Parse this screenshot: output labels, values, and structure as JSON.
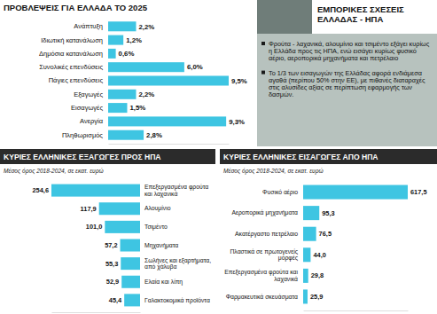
{
  "chart_data": [
    {
      "type": "bar",
      "orientation": "horizontal",
      "title": "ΠΡΟΒΛΕΨΕΙΣ ΓΙΑ ΕΛΛΑΔΑ ΤΟ 2025",
      "categories": [
        "Ανάπτυξη",
        "Ιδιωτική κατανάλωση",
        "Δημόσια κατανάλωση",
        "Συνολικές επενδύσεις",
        "Πάγιες επενδύσεις",
        "Εξαγωγές",
        "Εισαγωγές",
        "Ανεργία",
        "Πληθωρισμός"
      ],
      "values": [
        2.2,
        1.2,
        0.6,
        6.0,
        9.5,
        2.2,
        1.5,
        9.3,
        2.8
      ],
      "value_labels": [
        "2,2%",
        "1,2%",
        "0,6%",
        "6,0%",
        "9,5%",
        "2,2%",
        "1,5%",
        "9,3%",
        "2,8%"
      ],
      "color": "#3ec5e2",
      "xlim": [
        0,
        9.5
      ],
      "data_labels": true,
      "tick_labels": "y"
    },
    {
      "type": "bar",
      "orientation": "horizontal",
      "title": "ΚΥΡΙΕΣ ΕΛΛΗΝΙΚΕΣ ΕΞΑΓΩΓΕΣ ΠΡΟΣ ΗΠΑ",
      "subtitle": "Μέσος όρος 2018-2024, σε εκατ. ευρώ",
      "categories": [
        "Επεξεργασμένα φρούτα και λαχανικά",
        "Αλουμίνιο",
        "Τσιμέντο",
        "Μηχανήματα",
        "Σωλήνες και εξαρτήματα, από χάλυβα",
        "Ελαία και λίπη",
        "Γαλακτοκομικά προϊόντα"
      ],
      "values": [
        254.6,
        117.9,
        101.0,
        57.2,
        55.3,
        52.9,
        45.4
      ],
      "value_labels": [
        "254,6",
        "117,9",
        "101,0",
        "57,2",
        "55,3",
        "52,9",
        "45,4"
      ],
      "color": "#3ec5e2",
      "xlim": [
        0,
        254.6
      ],
      "data_labels": true,
      "tick_labels": "y"
    },
    {
      "type": "bar",
      "orientation": "horizontal",
      "title": "ΚΥΡΙΕΣ ΕΛΛΗΝΙΚΕΣ ΕΙΣΑΓΩΓΕΣ ΑΠΟ ΗΠΑ",
      "subtitle": "Μέσος όρος 2018-2024, σε εκατ. ευρώ",
      "categories": [
        "Φυσικό αέριο",
        "Αεροπορικά μηχανήματα",
        "Ακατέργαστο πετρέλαιο",
        "Πλαστικά σε πρωτογενείς μορφές",
        "Επεξεργασμένα φρούτα και λαχανικά",
        "Φαρμακευτικά σκευάσματα"
      ],
      "values": [
        617.5,
        95.3,
        76.5,
        44.0,
        29.8,
        25.9
      ],
      "value_labels": [
        "617,5",
        "95,3",
        "76,5",
        "44,0",
        "29,8",
        "25,9"
      ],
      "color": "#3ec5e2",
      "xlim": [
        0,
        617.5
      ],
      "data_labels": true,
      "tick_labels": "y"
    }
  ],
  "info_panel": {
    "title": "ΕΜΠΟΡΙΚΕΣ ΣΧΕΣΕΙΣ ΕΛΛΑΔΑΣ - ΗΠΑ",
    "bullets": [
      "Φρούτα - λαχανικά, αλουμίνιο και τσιμέντο εξάγει κυρίως η Ελλάδα προς τις ΗΠΑ, ενώ εισάγει κυρίως φυσικό αέριο, αεροπορικά μηχανήματα και πετρέλαιο",
      "Το 1/3 των εισαγωγών της Ελλάδας αφορά ενδιάμεσα αγαθά (περίπου 50% στην ΕΕ), με πιθανές διαταραχές στις αλυσίδες αξίας σε περίπτωση εφαρμογής των δασμών."
    ]
  }
}
